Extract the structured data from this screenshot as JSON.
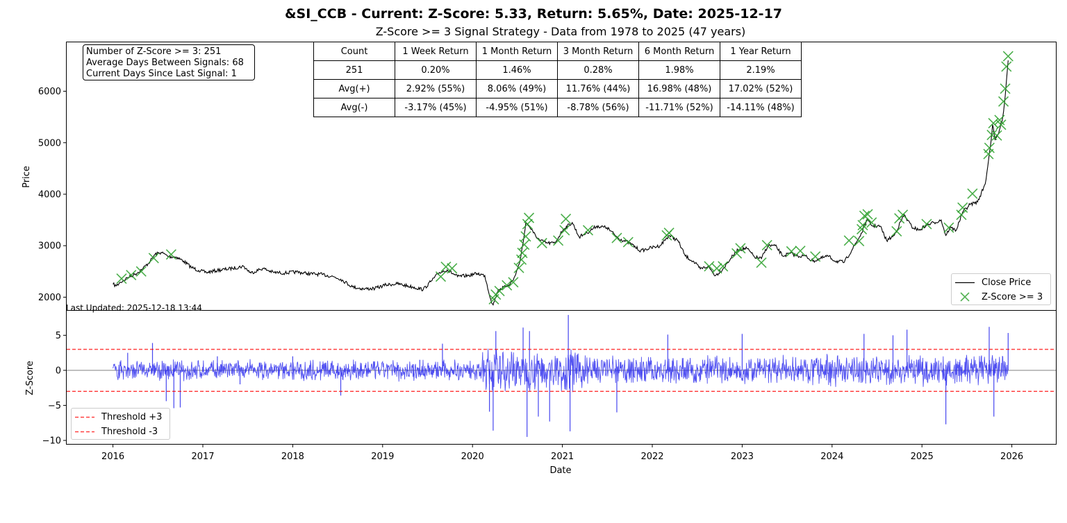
{
  "title": "&SI_CCB - Current: Z-Score: 5.33, Return: 5.65%, Date: 2025-12-17",
  "subtitle": "Z-Score >= 3 Signal Strategy - Data from 1978 to 2025 (47 years)",
  "info_box": {
    "line1": "Number of Z-Score >= 3: 251",
    "line2": "Average Days Between Signals: 68",
    "line3": "Current Days Since Last Signal: 1"
  },
  "stats_table": {
    "header": [
      "Count",
      "1 Week Return",
      "1 Month Return",
      "3 Month Return",
      "6 Month Return",
      "1 Year Return"
    ],
    "rows": [
      [
        "251",
        "0.20%",
        "1.46%",
        "0.28%",
        "1.98%",
        "2.19%"
      ],
      [
        "Avg(+)",
        "2.92% (55%)",
        "8.06% (49%)",
        "11.76% (44%)",
        "16.98% (48%)",
        "17.02% (52%)"
      ],
      [
        "Avg(-)",
        "-3.17% (45%)",
        "-4.95% (51%)",
        "-8.78% (56%)",
        "-11.71% (52%)",
        "-14.11% (48%)"
      ]
    ]
  },
  "last_updated": "Last Updated: 2025-12-18 13:44",
  "legend_top": {
    "close": "Close Price",
    "signal": "Z-Score >= 3"
  },
  "legend_bottom": {
    "upper": "Threshold +3",
    "lower": "Threshold -3"
  },
  "colors": {
    "price": "#000000",
    "signal": "#2ca02c",
    "zscore": "#3333ee",
    "threshold": "#ff0000",
    "zero": "#aaaaaa"
  },
  "chart_data": [
    {
      "type": "line",
      "ylabel": "Price",
      "ylim": [
        1750,
        6950
      ],
      "yticks": [
        2000,
        3000,
        4000,
        5000,
        6000
      ],
      "series": [
        {
          "name": "Close Price",
          "points": [
            [
              "2016-01-01",
              2250
            ],
            [
              "2016-01-15",
              2220
            ],
            [
              "2016-02-01",
              2290
            ],
            [
              "2016-03-01",
              2380
            ],
            [
              "2016-04-01",
              2450
            ],
            [
              "2016-05-01",
              2550
            ],
            [
              "2016-06-01",
              2700
            ],
            [
              "2016-06-20",
              2830
            ],
            [
              "2016-07-15",
              2870
            ],
            [
              "2016-08-15",
              2790
            ],
            [
              "2016-09-15",
              2780
            ],
            [
              "2016-10-15",
              2700
            ],
            [
              "2016-11-15",
              2580
            ],
            [
              "2016-12-15",
              2520
            ],
            [
              "2017-01-15",
              2480
            ],
            [
              "2017-03-01",
              2520
            ],
            [
              "2017-05-01",
              2560
            ],
            [
              "2017-06-15",
              2600
            ],
            [
              "2017-07-15",
              2470
            ],
            [
              "2017-09-01",
              2560
            ],
            [
              "2017-10-15",
              2480
            ],
            [
              "2017-12-01",
              2470
            ],
            [
              "2018-01-15",
              2490
            ],
            [
              "2018-03-01",
              2460
            ],
            [
              "2018-05-01",
              2440
            ],
            [
              "2018-06-15",
              2400
            ],
            [
              "2018-07-15",
              2350
            ],
            [
              "2018-09-01",
              2200
            ],
            [
              "2018-10-15",
              2160
            ],
            [
              "2018-12-01",
              2170
            ],
            [
              "2019-01-15",
              2240
            ],
            [
              "2019-03-01",
              2260
            ],
            [
              "2019-05-01",
              2200
            ],
            [
              "2019-06-15",
              2150
            ],
            [
              "2019-07-15",
              2300
            ],
            [
              "2019-08-20",
              2480
            ],
            [
              "2019-09-20",
              2530
            ],
            [
              "2019-11-01",
              2400
            ],
            [
              "2019-12-15",
              2420
            ],
            [
              "2020-01-20",
              2460
            ],
            [
              "2020-02-20",
              2420
            ],
            [
              "2020-03-15",
              1960
            ],
            [
              "2020-03-25",
              1850
            ],
            [
              "2020-04-15",
              2150
            ],
            [
              "2020-05-15",
              2200
            ],
            [
              "2020-06-15",
              2330
            ],
            [
              "2020-07-10",
              2650
            ],
            [
              "2020-07-25",
              3050
            ],
            [
              "2020-08-05",
              3450
            ],
            [
              "2020-08-20",
              3370
            ],
            [
              "2020-09-05",
              3250
            ],
            [
              "2020-10-01",
              3100
            ],
            [
              "2020-11-01",
              3050
            ],
            [
              "2020-12-01",
              3050
            ],
            [
              "2021-01-05",
              3320
            ],
            [
              "2021-02-10",
              3450
            ],
            [
              "2021-03-10",
              3170
            ],
            [
              "2021-04-10",
              3250
            ],
            [
              "2021-05-20",
              3380
            ],
            [
              "2021-07-01",
              3350
            ],
            [
              "2021-08-15",
              3150
            ],
            [
              "2021-10-01",
              3050
            ],
            [
              "2021-11-15",
              2900
            ],
            [
              "2021-12-20",
              2950
            ],
            [
              "2022-02-01",
              3000
            ],
            [
              "2022-03-10",
              3200
            ],
            [
              "2022-04-15",
              3100
            ],
            [
              "2022-05-15",
              2800
            ],
            [
              "2022-06-15",
              2700
            ],
            [
              "2022-07-15",
              2550
            ],
            [
              "2022-08-15",
              2600
            ],
            [
              "2022-09-15",
              2420
            ],
            [
              "2022-10-15",
              2550
            ],
            [
              "2022-11-15",
              2750
            ],
            [
              "2022-12-15",
              2920
            ],
            [
              "2023-01-20",
              2950
            ],
            [
              "2023-02-20",
              2780
            ],
            [
              "2023-03-20",
              2750
            ],
            [
              "2023-04-15",
              3000
            ],
            [
              "2023-05-15",
              3000
            ],
            [
              "2023-06-15",
              2800
            ],
            [
              "2023-07-15",
              2850
            ],
            [
              "2023-08-15",
              2800
            ],
            [
              "2023-09-15",
              2800
            ],
            [
              "2023-10-15",
              2700
            ],
            [
              "2023-11-15",
              2750
            ],
            [
              "2023-12-15",
              2800
            ],
            [
              "2024-01-15",
              2700
            ],
            [
              "2024-02-20",
              2680
            ],
            [
              "2024-04-01",
              3000
            ],
            [
              "2024-05-01",
              3250
            ],
            [
              "2024-05-20",
              3500
            ],
            [
              "2024-06-15",
              3380
            ],
            [
              "2024-07-15",
              3380
            ],
            [
              "2024-08-10",
              3100
            ],
            [
              "2024-09-10",
              3200
            ],
            [
              "2024-10-20",
              3600
            ],
            [
              "2024-11-20",
              3370
            ],
            [
              "2024-12-20",
              3300
            ],
            [
              "2025-01-20",
              3400
            ],
            [
              "2025-02-20",
              3450
            ],
            [
              "2025-03-20",
              3500
            ],
            [
              "2025-04-08",
              3200
            ],
            [
              "2025-04-25",
              3350
            ],
            [
              "2025-05-20",
              3300
            ],
            [
              "2025-06-15",
              3650
            ],
            [
              "2025-07-15",
              3800
            ],
            [
              "2025-08-15",
              3850
            ],
            [
              "2025-09-15",
              4200
            ],
            [
              "2025-10-05",
              4900
            ],
            [
              "2025-10-15",
              5350
            ],
            [
              "2025-10-25",
              5050
            ],
            [
              "2025-11-05",
              5150
            ],
            [
              "2025-11-15",
              5300
            ],
            [
              "2025-11-25",
              5500
            ],
            [
              "2025-12-05",
              5900
            ],
            [
              "2025-12-10",
              6200
            ],
            [
              "2025-12-17",
              6600
            ]
          ]
        },
        {
          "name": "Z-Score >= 3",
          "points": [
            [
              "2016-02-05",
              2360
            ],
            [
              "2016-03-15",
              2430
            ],
            [
              "2016-04-25",
              2500
            ],
            [
              "2016-06-15",
              2760
            ],
            [
              "2016-08-25",
              2830
            ],
            [
              "2019-08-25",
              2400
            ],
            [
              "2019-09-15",
              2590
            ],
            [
              "2019-10-10",
              2560
            ],
            [
              "2020-03-28",
              1960
            ],
            [
              "2020-04-05",
              2050
            ],
            [
              "2020-04-20",
              2120
            ],
            [
              "2020-05-20",
              2230
            ],
            [
              "2020-06-15",
              2290
            ],
            [
              "2020-07-08",
              2570
            ],
            [
              "2020-07-18",
              2730
            ],
            [
              "2020-07-22",
              2860
            ],
            [
              "2020-07-30",
              3020
            ],
            [
              "2020-08-05",
              3180
            ],
            [
              "2020-08-12",
              3420
            ],
            [
              "2020-08-18",
              3540
            ],
            [
              "2020-10-10",
              3050
            ],
            [
              "2020-12-15",
              3100
            ],
            [
              "2021-01-10",
              3300
            ],
            [
              "2021-01-15",
              3520
            ],
            [
              "2021-04-15",
              3300
            ],
            [
              "2021-08-10",
              3150
            ],
            [
              "2021-09-25",
              3070
            ],
            [
              "2022-03-01",
              3200
            ],
            [
              "2022-03-10",
              3250
            ],
            [
              "2022-08-20",
              2600
            ],
            [
              "2022-09-20",
              2560
            ],
            [
              "2022-10-15",
              2600
            ],
            [
              "2022-12-10",
              2850
            ],
            [
              "2022-12-25",
              2950
            ],
            [
              "2023-03-20",
              2670
            ],
            [
              "2023-04-12",
              3010
            ],
            [
              "2023-07-20",
              2890
            ],
            [
              "2023-08-25",
              2900
            ],
            [
              "2023-10-25",
              2790
            ],
            [
              "2024-03-10",
              3100
            ],
            [
              "2024-04-20",
              3090
            ],
            [
              "2024-05-01",
              3320
            ],
            [
              "2024-05-05",
              3400
            ],
            [
              "2024-05-12",
              3580
            ],
            [
              "2024-05-25",
              3610
            ],
            [
              "2024-06-10",
              3450
            ],
            [
              "2024-09-20",
              3280
            ],
            [
              "2024-10-01",
              3530
            ],
            [
              "2024-10-15",
              3600
            ],
            [
              "2025-01-20",
              3420
            ],
            [
              "2025-04-20",
              3350
            ],
            [
              "2025-06-10",
              3600
            ],
            [
              "2025-06-15",
              3740
            ],
            [
              "2025-07-25",
              4010
            ],
            [
              "2025-09-28",
              4780
            ],
            [
              "2025-10-02",
              4900
            ],
            [
              "2025-10-12",
              5150
            ],
            [
              "2025-10-18",
              5380
            ],
            [
              "2025-11-01",
              5140
            ],
            [
              "2025-11-12",
              5440
            ],
            [
              "2025-11-18",
              5350
            ],
            [
              "2025-11-28",
              5800
            ],
            [
              "2025-12-05",
              6050
            ],
            [
              "2025-12-10",
              6480
            ],
            [
              "2025-12-17",
              6680
            ]
          ]
        }
      ]
    },
    {
      "type": "line",
      "xlabel": "Date",
      "ylabel": "Z-Score",
      "ylim": [
        -10.5,
        8.5
      ],
      "yticks": [
        -10,
        -5,
        0,
        5
      ],
      "xticks": [
        "2016",
        "2017",
        "2018",
        "2019",
        "2020",
        "2021",
        "2022",
        "2023",
        "2024",
        "2025",
        "2026"
      ],
      "thresholds": [
        3,
        -3
      ],
      "series": [
        {
          "name": "Z-Score",
          "points": [
            [
              "2016-01-01",
              0
            ],
            [
              "2016-03-01",
              2.5
            ],
            [
              "2016-06-10",
              3.9
            ],
            [
              "2016-08-05",
              -4.4
            ],
            [
              "2016-09-05",
              -5.4
            ],
            [
              "2016-10-01",
              -5.3
            ],
            [
              "2017-03-01",
              2
            ],
            [
              "2017-06-01",
              -2
            ],
            [
              "2018-01-01",
              2
            ],
            [
              "2018-07-15",
              -3.6
            ],
            [
              "2019-06-01",
              1.5
            ],
            [
              "2019-09-01",
              3.8
            ],
            [
              "2020-03-10",
              -5.9
            ],
            [
              "2020-03-25",
              -8.6
            ],
            [
              "2020-04-05",
              5.6
            ],
            [
              "2020-07-25",
              6.1
            ],
            [
              "2020-08-10",
              -9.5
            ],
            [
              "2020-08-20",
              5.6
            ],
            [
              "2020-09-25",
              -6.6
            ],
            [
              "2020-11-10",
              -7.3
            ],
            [
              "2021-01-25",
              7.9
            ],
            [
              "2021-02-01",
              -8.7
            ],
            [
              "2021-08-10",
              -6
            ],
            [
              "2022-03-05",
              5.1
            ],
            [
              "2023-01-01",
              5.2
            ],
            [
              "2024-05-10",
              5.2
            ],
            [
              "2024-09-05",
              5
            ],
            [
              "2024-11-01",
              5.8
            ],
            [
              "2025-04-08",
              -7.7
            ],
            [
              "2025-10-01",
              6.2
            ],
            [
              "2025-10-20",
              -6.6
            ],
            [
              "2025-12-17",
              5.33
            ]
          ]
        }
      ]
    }
  ]
}
